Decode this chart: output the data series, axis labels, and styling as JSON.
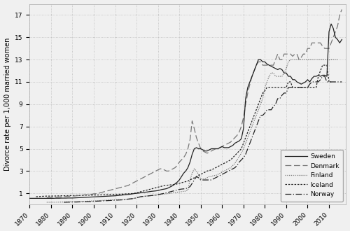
{
  "title": "",
  "ylabel": "Divorce rate per 1,000 married women",
  "xlabel": "",
  "ylim": [
    0,
    18
  ],
  "yticks": [
    1,
    3,
    5,
    7,
    9,
    11,
    13,
    15,
    17
  ],
  "xlim": [
    1870,
    2018
  ],
  "xticks": [
    1870,
    1880,
    1890,
    1900,
    1910,
    1920,
    1930,
    1940,
    1950,
    1960,
    1970,
    1980,
    1990,
    2000,
    2010
  ],
  "background_color": "#f0f0f0",
  "grid_color": "#bbbbbb",
  "line_color": "#222222",
  "sweden": {
    "years": [
      1870,
      1871,
      1872,
      1873,
      1874,
      1875,
      1876,
      1877,
      1878,
      1879,
      1880,
      1881,
      1882,
      1883,
      1884,
      1885,
      1886,
      1887,
      1888,
      1889,
      1890,
      1891,
      1892,
      1893,
      1894,
      1895,
      1896,
      1897,
      1898,
      1899,
      1900,
      1901,
      1902,
      1903,
      1904,
      1905,
      1906,
      1907,
      1908,
      1909,
      1910,
      1911,
      1912,
      1913,
      1914,
      1915,
      1916,
      1917,
      1918,
      1919,
      1920,
      1921,
      1922,
      1923,
      1924,
      1925,
      1926,
      1927,
      1928,
      1929,
      1930,
      1931,
      1932,
      1933,
      1934,
      1935,
      1936,
      1937,
      1938,
      1939,
      1940,
      1941,
      1942,
      1943,
      1944,
      1945,
      1946,
      1947,
      1948,
      1949,
      1950,
      1951,
      1952,
      1953,
      1954,
      1955,
      1956,
      1957,
      1958,
      1959,
      1960,
      1961,
      1962,
      1963,
      1964,
      1965,
      1966,
      1967,
      1968,
      1969,
      1970,
      1971,
      1972,
      1973,
      1974,
      1975,
      1976,
      1977,
      1978,
      1979,
      1980,
      1981,
      1982,
      1983,
      1984,
      1985,
      1986,
      1987,
      1988,
      1989,
      1990,
      1991,
      1992,
      1993,
      1994,
      1995,
      1996,
      1997,
      1998,
      1999,
      2000,
      2001,
      2002,
      2003,
      2004,
      2005,
      2006,
      2007,
      2008,
      2009,
      2010,
      2011,
      2012,
      2013,
      2014,
      2015,
      2016
    ],
    "values": [
      0.55,
      0.55,
      0.55,
      0.55,
      0.55,
      0.55,
      0.55,
      0.55,
      0.55,
      0.55,
      0.55,
      0.55,
      0.56,
      0.56,
      0.56,
      0.57,
      0.57,
      0.57,
      0.58,
      0.58,
      0.58,
      0.59,
      0.6,
      0.61,
      0.62,
      0.63,
      0.64,
      0.65,
      0.66,
      0.67,
      0.68,
      0.69,
      0.7,
      0.71,
      0.72,
      0.73,
      0.74,
      0.75,
      0.76,
      0.77,
      0.78,
      0.8,
      0.82,
      0.84,
      0.86,
      0.88,
      0.9,
      0.92,
      0.95,
      0.98,
      1.0,
      1.02,
      1.05,
      1.08,
      1.1,
      1.12,
      1.15,
      1.18,
      1.2,
      1.22,
      1.25,
      1.3,
      1.35,
      1.38,
      1.42,
      1.5,
      1.6,
      1.7,
      1.85,
      2.0,
      2.2,
      2.5,
      2.8,
      3.0,
      3.3,
      3.8,
      4.5,
      5.0,
      5.1,
      5.0,
      5.0,
      4.9,
      4.8,
      4.8,
      4.9,
      5.0,
      5.0,
      5.0,
      5.0,
      5.1,
      5.2,
      5.1,
      5.1,
      5.1,
      5.2,
      5.3,
      5.5,
      5.6,
      5.7,
      5.9,
      6.8,
      9.5,
      10.5,
      11.0,
      11.5,
      12.0,
      12.5,
      13.0,
      13.0,
      12.8,
      12.8,
      12.6,
      12.5,
      12.4,
      12.3,
      12.2,
      12.1,
      12.2,
      12.1,
      11.8,
      11.8,
      11.5,
      11.5,
      11.2,
      11.2,
      11.0,
      10.9,
      10.8,
      10.9,
      11.0,
      11.2,
      11.0,
      11.3,
      11.5,
      11.5,
      11.6,
      11.5,
      11.6,
      11.6,
      11.5,
      15.5,
      16.2,
      15.8,
      15.0,
      14.8,
      14.5,
      14.8
    ]
  },
  "denmark": {
    "years": [
      1878,
      1879,
      1880,
      1881,
      1882,
      1883,
      1884,
      1885,
      1886,
      1887,
      1888,
      1889,
      1890,
      1891,
      1892,
      1893,
      1894,
      1895,
      1896,
      1897,
      1898,
      1899,
      1900,
      1901,
      1902,
      1903,
      1904,
      1905,
      1906,
      1907,
      1908,
      1909,
      1910,
      1911,
      1912,
      1913,
      1914,
      1915,
      1916,
      1917,
      1918,
      1919,
      1920,
      1921,
      1922,
      1923,
      1924,
      1925,
      1926,
      1927,
      1928,
      1929,
      1930,
      1931,
      1932,
      1933,
      1934,
      1935,
      1936,
      1937,
      1938,
      1939,
      1940,
      1941,
      1942,
      1943,
      1944,
      1945,
      1946,
      1947,
      1948,
      1949,
      1950,
      1951,
      1952,
      1953,
      1954,
      1955,
      1956,
      1957,
      1958,
      1959,
      1960,
      1961,
      1962,
      1963,
      1964,
      1965,
      1966,
      1967,
      1968,
      1969,
      1970,
      1971,
      1972,
      1973,
      1974,
      1975,
      1976,
      1977,
      1978,
      1979,
      1980,
      1981,
      1982,
      1983,
      1984,
      1985,
      1986,
      1987,
      1988,
      1989,
      1990,
      1991,
      1992,
      1993,
      1994,
      1995,
      1996,
      1997,
      1998,
      1999,
      2000,
      2001,
      2002,
      2003,
      2004,
      2005,
      2006,
      2007,
      2008,
      2009,
      2010,
      2011,
      2012,
      2013,
      2014,
      2015,
      2016
    ],
    "values": [
      0.6,
      0.62,
      0.63,
      0.64,
      0.65,
      0.66,
      0.67,
      0.68,
      0.7,
      0.72,
      0.73,
      0.74,
      0.75,
      0.76,
      0.78,
      0.8,
      0.82,
      0.85,
      0.87,
      0.89,
      0.9,
      0.92,
      0.95,
      0.97,
      1.0,
      1.05,
      1.1,
      1.15,
      1.2,
      1.25,
      1.3,
      1.35,
      1.4,
      1.45,
      1.5,
      1.55,
      1.6,
      1.65,
      1.7,
      1.8,
      1.9,
      2.0,
      2.1,
      2.2,
      2.3,
      2.4,
      2.5,
      2.6,
      2.7,
      2.8,
      2.9,
      3.0,
      3.1,
      3.2,
      3.2,
      3.1,
      3.0,
      3.0,
      3.1,
      3.2,
      3.3,
      3.5,
      3.8,
      4.0,
      4.2,
      4.5,
      5.0,
      5.8,
      7.5,
      6.8,
      6.0,
      5.5,
      5.0,
      4.8,
      4.7,
      4.6,
      4.7,
      4.8,
      4.9,
      5.0,
      5.0,
      5.1,
      5.2,
      5.3,
      5.4,
      5.5,
      5.6,
      5.8,
      6.0,
      6.2,
      6.5,
      7.0,
      7.8,
      9.0,
      10.0,
      10.8,
      11.5,
      12.0,
      12.5,
      12.8,
      12.8,
      12.5,
      12.5,
      12.5,
      12.5,
      12.5,
      12.5,
      13.0,
      13.5,
      13.0,
      13.0,
      13.5,
      13.5,
      13.5,
      13.5,
      13.3,
      13.5,
      13.5,
      13.0,
      13.2,
      13.5,
      13.5,
      14.0,
      14.0,
      14.5,
      14.5,
      14.5,
      14.5,
      14.5,
      14.2,
      14.0,
      14.0,
      14.0,
      14.5,
      15.0,
      15.5,
      16.0,
      17.0,
      17.5
    ]
  },
  "finland": {
    "years": [
      1878,
      1879,
      1880,
      1881,
      1882,
      1883,
      1884,
      1885,
      1886,
      1887,
      1888,
      1889,
      1890,
      1891,
      1892,
      1893,
      1894,
      1895,
      1896,
      1897,
      1898,
      1899,
      1900,
      1901,
      1902,
      1903,
      1904,
      1905,
      1906,
      1907,
      1908,
      1909,
      1910,
      1911,
      1912,
      1913,
      1914,
      1915,
      1916,
      1917,
      1918,
      1919,
      1920,
      1921,
      1922,
      1923,
      1924,
      1925,
      1926,
      1927,
      1928,
      1929,
      1930,
      1931,
      1932,
      1933,
      1934,
      1935,
      1936,
      1937,
      1938,
      1939,
      1940,
      1941,
      1942,
      1943,
      1944,
      1945,
      1946,
      1947,
      1948,
      1949,
      1950,
      1951,
      1952,
      1953,
      1954,
      1955,
      1956,
      1957,
      1958,
      1959,
      1960,
      1961,
      1962,
      1963,
      1964,
      1965,
      1966,
      1967,
      1968,
      1969,
      1970,
      1971,
      1972,
      1973,
      1974,
      1975,
      1976,
      1977,
      1978,
      1979,
      1980,
      1981,
      1982,
      1983,
      1984,
      1985,
      1986,
      1987,
      1988,
      1989,
      1990,
      1991,
      1992,
      1993,
      1994,
      1995,
      1996,
      1997,
      1998,
      1999,
      2000,
      2001,
      2002,
      2003,
      2004,
      2005,
      2006,
      2007,
      2008,
      2009,
      2010,
      2011,
      2012,
      2013,
      2014
    ],
    "values": [
      0.2,
      0.2,
      0.2,
      0.2,
      0.2,
      0.21,
      0.21,
      0.22,
      0.22,
      0.23,
      0.23,
      0.24,
      0.25,
      0.25,
      0.26,
      0.27,
      0.27,
      0.28,
      0.28,
      0.29,
      0.3,
      0.31,
      0.32,
      0.33,
      0.34,
      0.35,
      0.36,
      0.37,
      0.38,
      0.39,
      0.4,
      0.41,
      0.42,
      0.43,
      0.44,
      0.45,
      0.46,
      0.47,
      0.48,
      0.5,
      0.52,
      0.55,
      0.6,
      0.65,
      0.7,
      0.72,
      0.74,
      0.76,
      0.78,
      0.8,
      0.82,
      0.84,
      0.86,
      0.9,
      0.92,
      0.94,
      0.96,
      0.98,
      1.0,
      1.05,
      1.08,
      1.1,
      1.12,
      1.15,
      1.18,
      1.2,
      1.3,
      2.2,
      2.8,
      3.2,
      3.0,
      2.7,
      2.3,
      2.3,
      2.3,
      2.4,
      2.5,
      2.5,
      2.6,
      2.6,
      2.7,
      2.8,
      2.9,
      3.0,
      3.1,
      3.2,
      3.3,
      3.5,
      3.7,
      4.0,
      4.3,
      4.6,
      5.0,
      5.5,
      6.0,
      6.5,
      7.0,
      7.5,
      8.0,
      8.5,
      9.0,
      9.5,
      10.5,
      11.0,
      11.5,
      11.8,
      11.8,
      11.5,
      11.5,
      11.5,
      11.5,
      11.8,
      12.2,
      12.8,
      13.0,
      13.0,
      13.0,
      13.0,
      13.0,
      13.0,
      13.0,
      13.0,
      13.0,
      13.0,
      13.0,
      13.0,
      13.0,
      13.0,
      13.0,
      13.0,
      13.0,
      13.0,
      13.0,
      13.0,
      13.0,
      13.0,
      13.0
    ]
  },
  "iceland": {
    "years": [
      1873,
      1874,
      1875,
      1876,
      1877,
      1878,
      1879,
      1880,
      1881,
      1882,
      1883,
      1884,
      1885,
      1886,
      1887,
      1888,
      1889,
      1890,
      1891,
      1892,
      1893,
      1894,
      1895,
      1896,
      1897,
      1898,
      1899,
      1900,
      1901,
      1902,
      1903,
      1904,
      1905,
      1906,
      1907,
      1908,
      1909,
      1910,
      1911,
      1912,
      1913,
      1914,
      1915,
      1916,
      1917,
      1918,
      1919,
      1920,
      1921,
      1922,
      1923,
      1924,
      1925,
      1926,
      1927,
      1928,
      1929,
      1930,
      1931,
      1932,
      1933,
      1934,
      1935,
      1936,
      1937,
      1938,
      1939,
      1940,
      1941,
      1942,
      1943,
      1944,
      1945,
      1946,
      1947,
      1948,
      1949,
      1950,
      1951,
      1952,
      1953,
      1954,
      1955,
      1956,
      1957,
      1958,
      1959,
      1960,
      1961,
      1962,
      1963,
      1964,
      1965,
      1966,
      1967,
      1968,
      1969,
      1970,
      1971,
      1972,
      1973,
      1974,
      1975,
      1976,
      1977,
      1978,
      1979,
      1980,
      1981,
      1982,
      1983,
      1984,
      1985,
      1986,
      1987,
      1988,
      1989,
      1990,
      1991,
      1992,
      1993,
      1994,
      1995,
      1996,
      1997,
      1998,
      1999,
      2000,
      2001,
      2002,
      2003,
      2004,
      2005,
      2006,
      2007,
      2008,
      2009,
      2010,
      2011
    ],
    "values": [
      0.7,
      0.7,
      0.72,
      0.73,
      0.74,
      0.75,
      0.75,
      0.75,
      0.76,
      0.76,
      0.77,
      0.77,
      0.78,
      0.78,
      0.79,
      0.79,
      0.8,
      0.8,
      0.8,
      0.81,
      0.81,
      0.82,
      0.82,
      0.83,
      0.83,
      0.84,
      0.84,
      0.85,
      0.85,
      0.85,
      0.86,
      0.86,
      0.87,
      0.88,
      0.88,
      0.89,
      0.9,
      0.9,
      0.91,
      0.92,
      0.93,
      0.93,
      0.95,
      0.96,
      0.97,
      0.98,
      1.0,
      1.05,
      1.1,
      1.15,
      1.2,
      1.25,
      1.3,
      1.35,
      1.4,
      1.45,
      1.5,
      1.55,
      1.6,
      1.65,
      1.7,
      1.72,
      1.74,
      1.76,
      1.78,
      1.8,
      1.85,
      1.9,
      1.95,
      2.0,
      2.05,
      2.1,
      2.2,
      2.3,
      2.4,
      2.5,
      2.6,
      2.7,
      2.8,
      2.9,
      3.0,
      3.05,
      3.1,
      3.2,
      3.3,
      3.4,
      3.5,
      3.6,
      3.7,
      3.8,
      3.9,
      4.0,
      4.2,
      4.4,
      4.6,
      4.8,
      5.0,
      5.5,
      6.0,
      6.5,
      7.0,
      7.5,
      8.0,
      8.5,
      9.0,
      9.5,
      10.0,
      10.2,
      10.5,
      10.5,
      10.5,
      10.5,
      10.5,
      10.5,
      10.5,
      10.5,
      10.5,
      10.5,
      11.0,
      11.0,
      10.5,
      10.5,
      10.5,
      10.5,
      10.5,
      10.5,
      10.5,
      10.5,
      10.5,
      10.5,
      10.5,
      10.5,
      11.5,
      12.0,
      12.5,
      12.5,
      12.5,
      11.0,
      11.0
    ]
  },
  "norway": {
    "years": [
      1886,
      1887,
      1888,
      1889,
      1890,
      1891,
      1892,
      1893,
      1894,
      1895,
      1896,
      1897,
      1898,
      1899,
      1900,
      1901,
      1902,
      1903,
      1904,
      1905,
      1906,
      1907,
      1908,
      1909,
      1910,
      1911,
      1912,
      1913,
      1914,
      1915,
      1916,
      1917,
      1918,
      1919,
      1920,
      1921,
      1922,
      1923,
      1924,
      1925,
      1926,
      1927,
      1928,
      1929,
      1930,
      1931,
      1932,
      1933,
      1934,
      1935,
      1936,
      1937,
      1938,
      1939,
      1940,
      1941,
      1942,
      1943,
      1944,
      1945,
      1946,
      1947,
      1948,
      1949,
      1950,
      1951,
      1952,
      1953,
      1954,
      1955,
      1956,
      1957,
      1958,
      1959,
      1960,
      1961,
      1962,
      1963,
      1964,
      1965,
      1966,
      1967,
      1968,
      1969,
      1970,
      1971,
      1972,
      1973,
      1974,
      1975,
      1976,
      1977,
      1978,
      1979,
      1980,
      1981,
      1982,
      1983,
      1984,
      1985,
      1986,
      1987,
      1988,
      1989,
      1990,
      1991,
      1992,
      1993,
      1994,
      1995,
      1996,
      1997,
      1998,
      1999,
      2000,
      2001,
      2002,
      2003,
      2004,
      2005,
      2006,
      2007,
      2008,
      2009,
      2010,
      2011,
      2012,
      2013,
      2014,
      2015,
      2016
    ],
    "values": [
      0.2,
      0.2,
      0.21,
      0.21,
      0.22,
      0.22,
      0.22,
      0.23,
      0.23,
      0.25,
      0.25,
      0.26,
      0.26,
      0.27,
      0.28,
      0.29,
      0.3,
      0.31,
      0.32,
      0.33,
      0.34,
      0.35,
      0.36,
      0.37,
      0.38,
      0.39,
      0.4,
      0.41,
      0.42,
      0.45,
      0.48,
      0.5,
      0.52,
      0.55,
      0.6,
      0.65,
      0.7,
      0.72,
      0.74,
      0.76,
      0.78,
      0.8,
      0.82,
      0.84,
      0.88,
      0.92,
      0.96,
      1.0,
      1.05,
      1.1,
      1.15,
      1.2,
      1.25,
      1.3,
      1.35,
      1.38,
      1.4,
      1.42,
      1.5,
      1.6,
      1.9,
      2.2,
      2.5,
      2.4,
      2.2,
      2.2,
      2.2,
      2.2,
      2.2,
      2.2,
      2.3,
      2.4,
      2.5,
      2.6,
      2.7,
      2.8,
      2.9,
      3.0,
      3.1,
      3.2,
      3.3,
      3.5,
      3.8,
      4.0,
      4.2,
      4.5,
      5.0,
      5.5,
      6.0,
      6.5,
      7.0,
      7.5,
      8.0,
      8.0,
      8.2,
      8.5,
      8.5,
      8.5,
      8.8,
      9.0,
      9.5,
      9.5,
      9.8,
      10.0,
      10.0,
      10.5,
      10.5,
      10.5,
      10.5,
      10.5,
      10.5,
      10.5,
      10.5,
      10.5,
      10.5,
      10.8,
      11.0,
      11.0,
      11.0,
      11.0,
      11.2,
      11.5,
      11.5,
      11.0,
      11.0,
      11.0,
      11.0,
      11.0,
      11.0,
      11.0,
      11.0
    ]
  }
}
